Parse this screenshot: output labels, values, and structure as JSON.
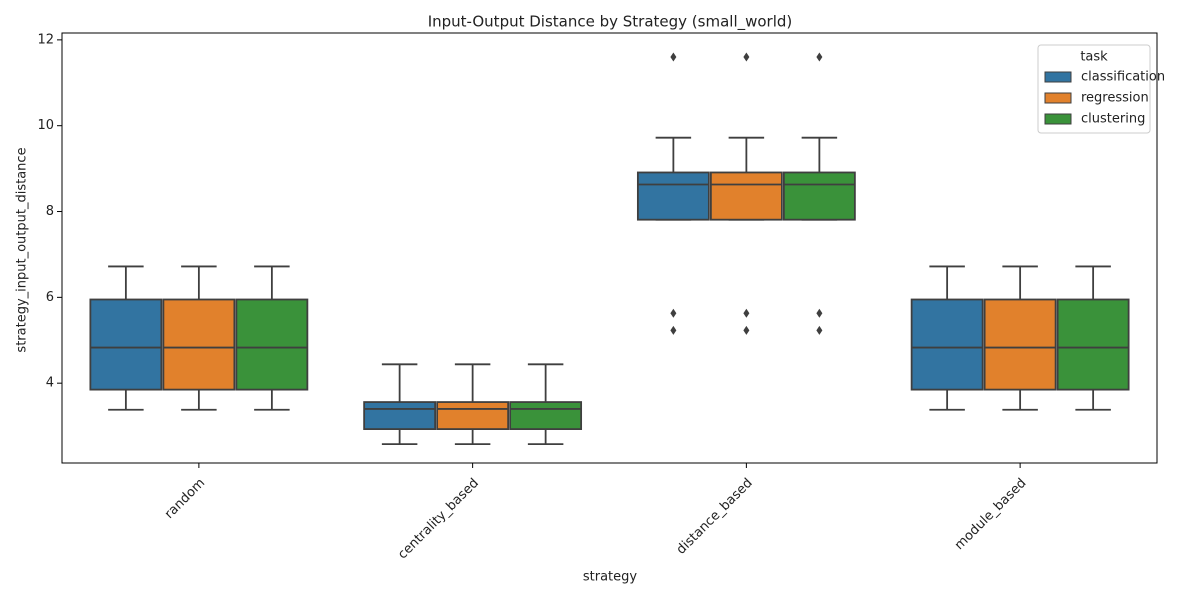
{
  "chart_data": {
    "type": "box",
    "title": "Input-Output Distance by Strategy (small_world)",
    "x_label": "strategy",
    "y_label": "strategy_input_output_distance",
    "categories": [
      "random",
      "centrality_based",
      "distance_based",
      "module_based"
    ],
    "legend_title": "task",
    "legend_position": "upper right",
    "series": [
      {
        "name": "classification",
        "color": "#3274a1",
        "low": [
          3.38,
          2.58,
          7.81,
          3.38
        ],
        "q1": [
          3.85,
          2.93,
          7.81,
          3.85
        ],
        "median": [
          4.83,
          3.4,
          8.63,
          4.83
        ],
        "q3": [
          5.95,
          3.56,
          8.91,
          5.95
        ],
        "high": [
          6.72,
          4.44,
          9.72,
          6.72
        ],
        "outliers": [
          [],
          [],
          [
            11.6,
            5.63,
            5.23
          ],
          []
        ]
      },
      {
        "name": "regression",
        "color": "#e1812c",
        "low": [
          3.38,
          2.58,
          7.81,
          3.38
        ],
        "q1": [
          3.85,
          2.93,
          7.81,
          3.85
        ],
        "median": [
          4.83,
          3.4,
          8.63,
          4.83
        ],
        "q3": [
          5.95,
          3.56,
          8.91,
          5.95
        ],
        "high": [
          6.72,
          4.44,
          9.72,
          6.72
        ],
        "outliers": [
          [],
          [],
          [
            11.6,
            5.63,
            5.23
          ],
          []
        ]
      },
      {
        "name": "clustering",
        "color": "#3a923a",
        "low": [
          3.38,
          2.58,
          7.81,
          3.38
        ],
        "q1": [
          3.85,
          2.93,
          7.81,
          3.85
        ],
        "median": [
          4.83,
          3.4,
          8.63,
          4.83
        ],
        "q3": [
          5.95,
          3.56,
          8.91,
          5.95
        ],
        "high": [
          6.72,
          4.44,
          9.72,
          6.72
        ],
        "outliers": [
          [],
          [],
          [
            11.6,
            5.63,
            5.23
          ],
          []
        ]
      }
    ],
    "ylim": [
      2.14,
      12.16
    ],
    "yticks": [
      4,
      6,
      8,
      10,
      12
    ]
  }
}
